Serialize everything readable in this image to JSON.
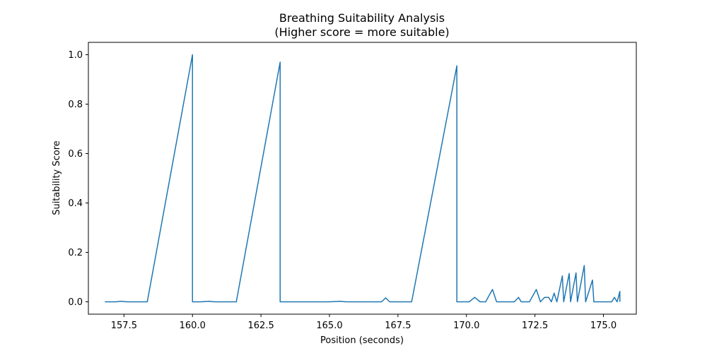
{
  "chart_data": {
    "type": "line",
    "title": "Breathing Suitability Analysis",
    "subtitle": "(Higher score = more suitable)",
    "xlabel": "Position (seconds)",
    "ylabel": "Suitability Score",
    "xlim": [
      156.2,
      176.2
    ],
    "ylim": [
      -0.05,
      1.05
    ],
    "xticks": [
      157.5,
      160.0,
      162.5,
      165.0,
      167.5,
      170.0,
      172.5,
      175.0
    ],
    "xtick_labels": [
      "157.5",
      "160.0",
      "162.5",
      "165.0",
      "167.5",
      "170.0",
      "172.5",
      "175.0"
    ],
    "yticks": [
      0.0,
      0.2,
      0.4,
      0.6,
      0.8,
      1.0
    ],
    "ytick_labels": [
      "0.0",
      "0.2",
      "0.4",
      "0.6",
      "0.8",
      "1.0"
    ],
    "grid": false,
    "legend": false,
    "series": [
      {
        "color": "#1f77b4",
        "x": [
          156.8,
          157.2,
          157.4,
          157.6,
          158.35,
          160.0,
          160.0,
          160.3,
          160.6,
          160.8,
          161.6,
          163.2,
          163.2,
          164.0,
          165.0,
          165.4,
          165.6,
          166.5,
          166.9,
          167.05,
          167.2,
          168.0,
          169.65,
          169.65,
          170.0,
          170.1,
          170.3,
          170.5,
          170.7,
          170.95,
          171.1,
          171.5,
          171.75,
          171.9,
          172.0,
          172.3,
          172.55,
          172.7,
          172.85,
          173.0,
          173.1,
          173.2,
          173.3,
          173.5,
          173.55,
          173.75,
          173.8,
          174.0,
          174.05,
          174.3,
          174.35,
          174.6,
          174.65,
          175.3,
          175.4,
          175.5,
          175.6,
          175.6
        ],
        "y": [
          0.0,
          0.0,
          0.002,
          0.0,
          0.0,
          1.0,
          0.0,
          0.0,
          0.002,
          0.0,
          0.0,
          0.97,
          0.0,
          0.0,
          0.0,
          0.002,
          0.0,
          0.0,
          0.0,
          0.016,
          0.0,
          0.0,
          0.955,
          0.0,
          0.0,
          0.0,
          0.018,
          0.0,
          0.0,
          0.05,
          0.0,
          0.0,
          0.0,
          0.018,
          0.0,
          0.0,
          0.05,
          0.0,
          0.018,
          0.018,
          0.0,
          0.035,
          0.0,
          0.105,
          0.0,
          0.115,
          0.0,
          0.117,
          0.0,
          0.147,
          0.0,
          0.088,
          0.0,
          0.0,
          0.018,
          0.0,
          0.042,
          0.0
        ]
      }
    ]
  }
}
